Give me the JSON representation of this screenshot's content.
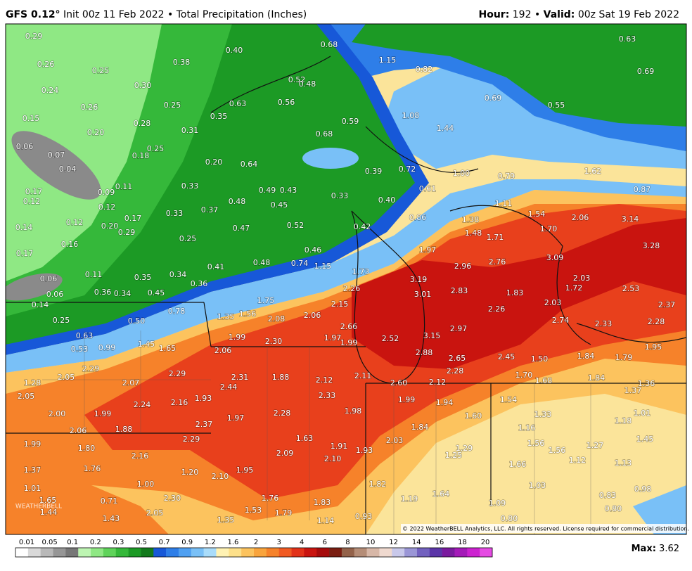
{
  "header": {
    "model": "GFS 0.12°",
    "title": "Init 00z 11 Feb 2022 • Total Precipitation (Inches)",
    "hour_label": "Hour:",
    "hour": "192",
    "separator": "•",
    "valid_label": "Valid:",
    "valid": "00z Sat 19 Feb 2022"
  },
  "map": {
    "logo": "WEATHERBELL",
    "copyright": "© 2022 WeatherBELL Analytics, LLC. All rights reserved. License required for commercial distribution.",
    "labels": [
      "0.29",
      "0.26",
      "0.25",
      "0.38",
      "0.40",
      "0.68",
      "1.15",
      "0.82",
      "0.63",
      "0.69",
      "0.24",
      "0.30",
      "0.52",
      "0.48",
      "0.26",
      "0.25",
      "0.63",
      "0.56",
      "0.69",
      "0.55",
      "0.15",
      "0.28",
      "0.35",
      "0.59",
      "1.08",
      "0.20",
      "0.31",
      "1.44",
      "0.06",
      "0.07",
      "0.25",
      "0.18",
      "0.68",
      "0.04",
      "0.20",
      "0.64",
      "0.39",
      "0.72",
      "1.00",
      "0.79",
      "1.62",
      "0.17",
      "0.09",
      "0.11",
      "0.33",
      "0.49",
      "0.43",
      "0.33",
      "0.61",
      "0.87",
      "0.12",
      "0.12",
      "0.48",
      "0.45",
      "0.40",
      "1.11",
      "0.33",
      "0.37",
      "0.86",
      "1.54",
      "2.06",
      "3.14",
      "0.14",
      "0.12",
      "0.20",
      "0.17",
      "0.29",
      "0.47",
      "0.52",
      "0.42",
      "1.38",
      "1.70",
      "1.48",
      "1.71",
      "0.25",
      "0.16",
      "0.46",
      "1.97",
      "3.28",
      "0.17",
      "0.48",
      "0.74",
      "1.15",
      "2.96",
      "2.76",
      "3.09",
      "0.41",
      "0.11",
      "1.73",
      "0.06",
      "0.35",
      "0.34",
      "0.36",
      "3.19",
      "2.03",
      "0.36",
      "0.34",
      "0.45",
      "2.26",
      "3.01",
      "2.83",
      "1.83",
      "1.72",
      "2.53",
      "0.06",
      "1.75",
      "2.15",
      "2.03",
      "2.26",
      "2.37",
      "0.14",
      "0.78",
      "1.35",
      "1.56",
      "2.08",
      "2.06",
      "2.74",
      "2.33",
      "2.28",
      "0.25",
      "0.50",
      "2.66",
      "2.97",
      "0.63",
      "1.99",
      "2.30",
      "1.97",
      "1.99",
      "2.52",
      "3.15",
      "0.53",
      "0.99",
      "1.45",
      "1.65",
      "2.06",
      "2.88",
      "2.65",
      "2.45",
      "1.50",
      "1.84",
      "1.79",
      "1.95",
      "2.29",
      "2.29",
      "2.31",
      "1.88",
      "2.12",
      "2.11",
      "2.28",
      "1.70",
      "1.68",
      "1.84",
      "1.36",
      "1.28",
      "2.05",
      "2.07",
      "2.44",
      "2.60",
      "2.12",
      "1.37",
      "2.05",
      "2.24",
      "2.16",
      "1.93",
      "2.33",
      "1.99",
      "1.94",
      "1.54",
      "2.00",
      "1.99",
      "2.28",
      "1.98",
      "1.60",
      "1.33",
      "1.01",
      "2.37",
      "1.97",
      "1.88",
      "2.06",
      "1.84",
      "1.16",
      "1.18",
      "1.99",
      "1.80",
      "2.29",
      "1.63",
      "1.91",
      "1.93",
      "2.03",
      "1.29",
      "1.56",
      "1.56",
      "1.27",
      "1.45",
      "2.16",
      "2.09",
      "2.10",
      "1.25",
      "1.12",
      "1.13",
      "1.37",
      "1.76",
      "1.20",
      "1.95",
      "1.66",
      "2.10",
      "1.82",
      "1.03",
      "1.01",
      "1.00",
      "1.64",
      "0.83",
      "0.98",
      "1.65",
      "0.71",
      "2.30",
      "1.76",
      "1.83",
      "1.19",
      "1.09",
      "0.80",
      "1.44",
      "2.05",
      "1.53",
      "1.79",
      "1.43",
      "1.35",
      "1.14",
      "0.93",
      "0.80"
    ]
  },
  "legend": {
    "ticks": [
      "0.01",
      "0.05",
      "0.1",
      "0.2",
      "0.3",
      "0.5",
      "0.7",
      "0.9",
      "1.2",
      "1.6",
      "2",
      "3",
      "4",
      "6",
      "8",
      "10",
      "12",
      "14",
      "16",
      "18",
      "20"
    ],
    "colors": [
      "#ffffff",
      "#d9d9d9",
      "#b8b8b8",
      "#969696",
      "#777777",
      "#bdf5b2",
      "#8fe884",
      "#5fd35a",
      "#35b83a",
      "#1c9a25",
      "#137a1c",
      "#1758d8",
      "#2e7ee8",
      "#4fa0f2",
      "#79c0f7",
      "#a9dcfa",
      "#fff2b3",
      "#fde08a",
      "#fcc35e",
      "#f9a43c",
      "#f6822a",
      "#f15a22",
      "#e23219",
      "#c9140f",
      "#a60b0b",
      "#7a1e12",
      "#93624a",
      "#b58d77",
      "#d7b7a7",
      "#efd9cf",
      "#c8c8ea",
      "#9a96d6",
      "#7261bf",
      "#5b35a8",
      "#7a1a9e",
      "#a41ab8",
      "#cc22d0",
      "#e54be3"
    ],
    "max_label": "Max:",
    "max_value": "3.62"
  }
}
